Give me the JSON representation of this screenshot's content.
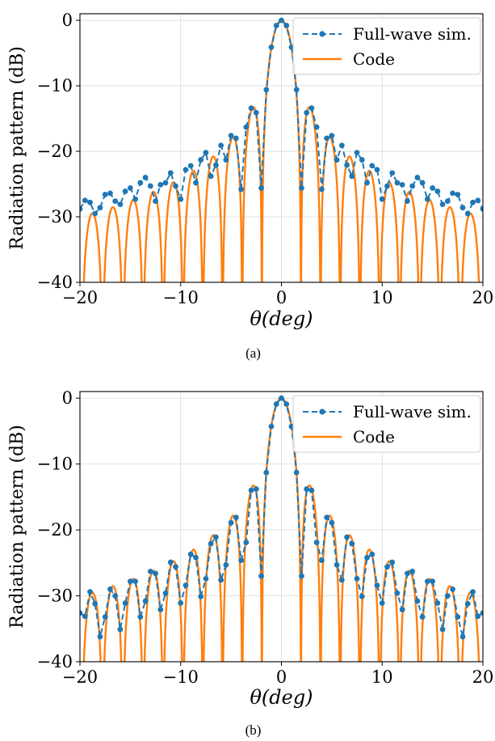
{
  "chart_data": [
    {
      "panel": "a",
      "type": "line",
      "caption": "(a)",
      "xlabel": "θ(deg)",
      "ylabel": "Radiation pattern (dB)",
      "xlim": [
        -20,
        20
      ],
      "ylim": [
        -40,
        1
      ],
      "xticks": [
        -20,
        -10,
        0,
        10,
        20
      ],
      "xtick_labels": [
        "−20",
        "−10",
        "0",
        "10",
        "20"
      ],
      "yticks": [
        0,
        -10,
        -20,
        -30,
        -40
      ],
      "ytick_labels": [
        "0",
        "−10",
        "−20",
        "−30",
        "−40"
      ],
      "grid": true,
      "legend_position": "top-right",
      "series": [
        {
          "name": "Full-wave sim.",
          "style": "dashed-markers",
          "color": "#1f77b4",
          "x": [
            -20,
            -19.5,
            -19,
            -18.5,
            -18,
            -17.5,
            -17,
            -16.5,
            -16,
            -15.5,
            -15,
            -14.5,
            -14,
            -13.5,
            -13,
            -12.5,
            -12,
            -11.5,
            -11,
            -10.5,
            -10,
            -9.5,
            -9,
            -8.5,
            -8,
            -7.5,
            -7,
            -6.5,
            -6,
            -5.5,
            -5,
            -4.5,
            -4,
            -3.5,
            -3,
            -2.5,
            -2,
            -1.5,
            -1,
            -0.5,
            0,
            0.5,
            1,
            1.5,
            2,
            2.5,
            3,
            3.5,
            4,
            4.5,
            5,
            5.5,
            6,
            6.5,
            7,
            7.5,
            8,
            8.5,
            9,
            9.5,
            10,
            10.5,
            11,
            11.5,
            12,
            12.5,
            13,
            13.5,
            14,
            14.5,
            15,
            15.5,
            16,
            16.5,
            17,
            17.5,
            18,
            18.5,
            19,
            19.5,
            20
          ],
          "y": [
            -28.8,
            -27.5,
            -27.8,
            -29.5,
            -28.6,
            -26.6,
            -26.4,
            -27.6,
            -28.1,
            -26.1,
            -25.6,
            -27.3,
            -24.8,
            -24.0,
            -25.3,
            -27.6,
            -25.1,
            -24.8,
            -23.3,
            -25.3,
            -27.3,
            -22.8,
            -22.2,
            -24.8,
            -21.3,
            -20.2,
            -23.8,
            -22.1,
            -19.1,
            -21.3,
            -17.6,
            -18.0,
            -25.8,
            -16.3,
            -13.4,
            -14.1,
            -25.6,
            -10.6,
            -4.1,
            -0.8,
            0,
            -0.8,
            -4.1,
            -10.6,
            -25.6,
            -14.1,
            -13.4,
            -16.3,
            -25.8,
            -18.0,
            -17.6,
            -21.3,
            -19.1,
            -22.1,
            -23.8,
            -20.2,
            -21.3,
            -24.8,
            -22.2,
            -22.8,
            -27.3,
            -25.3,
            -23.3,
            -24.8,
            -25.1,
            -27.6,
            -25.3,
            -24.0,
            -24.8,
            -27.3,
            -25.6,
            -26.1,
            -28.1,
            -27.6,
            -26.4,
            -26.6,
            -28.6,
            -29.5,
            -27.8,
            -27.5,
            -28.8
          ]
        },
        {
          "name": "Code",
          "style": "solid",
          "color": "#ff7f0e"
        }
      ]
    },
    {
      "panel": "b",
      "type": "line",
      "caption": "(b)",
      "xlabel": "θ(deg)",
      "ylabel": "Radiation pattern (dB)",
      "xlim": [
        -20,
        20
      ],
      "ylim": [
        -40,
        1
      ],
      "xticks": [
        -20,
        -10,
        0,
        10,
        20
      ],
      "xtick_labels": [
        "−20",
        "−10",
        "0",
        "10",
        "20"
      ],
      "yticks": [
        0,
        -10,
        -20,
        -30,
        -40
      ],
      "ytick_labels": [
        "0",
        "−10",
        "−20",
        "−30",
        "−40"
      ],
      "grid": true,
      "legend_position": "top-right",
      "series": [
        {
          "name": "Full-wave sim.",
          "style": "dashed-markers",
          "color": "#1f77b4",
          "x": [
            -20,
            -19.5,
            -19,
            -18.5,
            -18,
            -17.5,
            -17,
            -16.5,
            -16,
            -15.5,
            -15,
            -14.5,
            -14,
            -13.5,
            -13,
            -12.5,
            -12,
            -11.5,
            -11,
            -10.5,
            -10,
            -9.5,
            -9,
            -8.5,
            -8,
            -7.5,
            -7,
            -6.5,
            -6,
            -5.5,
            -5,
            -4.5,
            -4,
            -3.5,
            -3,
            -2.5,
            -2,
            -1.5,
            -1,
            -0.5,
            0,
            0.5,
            1,
            1.5,
            2,
            2.5,
            3,
            3.5,
            4,
            4.5,
            5,
            5.5,
            6,
            6.5,
            7,
            7.5,
            8,
            8.5,
            9,
            9.5,
            10,
            10.5,
            11,
            11.5,
            12,
            12.5,
            13,
            13.5,
            14,
            14.5,
            15,
            15.5,
            16,
            16.5,
            17,
            17.5,
            18,
            18.5,
            19,
            19.5,
            20
          ],
          "y": [
            -32.6,
            -33.1,
            -29.4,
            -31.2,
            -36.2,
            -33.2,
            -29.0,
            -30.0,
            -35.1,
            -31.1,
            -27.8,
            -27.8,
            -33.2,
            -30.8,
            -26.3,
            -26.6,
            -32.1,
            -29.6,
            -24.9,
            -25.6,
            -31.1,
            -28.4,
            -23.7,
            -24.2,
            -30.1,
            -27.4,
            -22.1,
            -21.1,
            -27.6,
            -25.3,
            -18.9,
            -18.1,
            -24.6,
            -21.9,
            -14.0,
            -13.8,
            -27.0,
            -11.3,
            -4.3,
            -0.9,
            0,
            -0.9,
            -4.3,
            -11.3,
            -27.0,
            -13.8,
            -14.0,
            -21.9,
            -24.6,
            -18.1,
            -18.9,
            -25.3,
            -27.6,
            -21.1,
            -22.1,
            -27.4,
            -30.1,
            -24.2,
            -23.7,
            -28.4,
            -31.1,
            -25.6,
            -24.9,
            -29.6,
            -32.1,
            -26.6,
            -26.3,
            -30.8,
            -33.2,
            -27.8,
            -27.8,
            -31.1,
            -35.1,
            -30.0,
            -29.0,
            -33.2,
            -36.2,
            -31.2,
            -29.4,
            -33.1,
            -32.6
          ]
        },
        {
          "name": "Code",
          "style": "solid",
          "color": "#ff7f0e"
        }
      ]
    }
  ]
}
